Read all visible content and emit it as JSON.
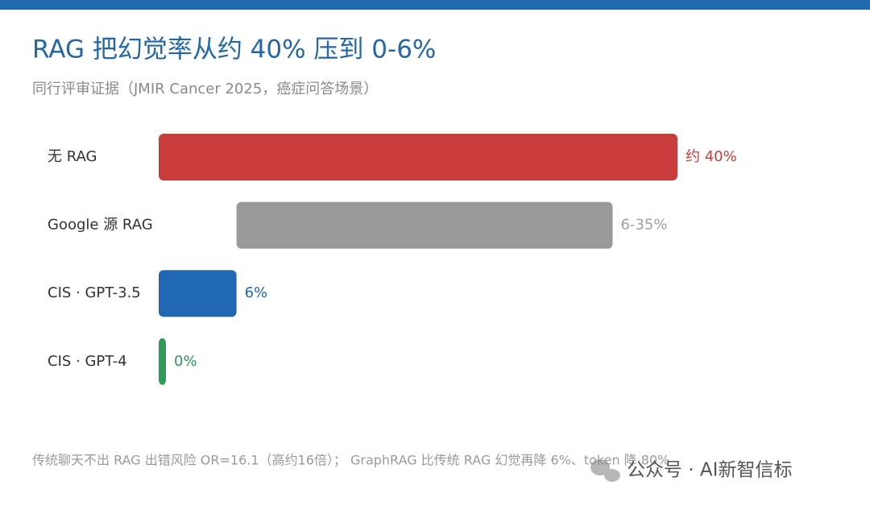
{
  "chart_data": {
    "type": "bar",
    "orientation": "horizontal",
    "title": "RAG 把幻觉率从约 40% 压到 0-6%",
    "subtitle": "同行评审证据（JMIR Cancer 2025，癌症问答场景）",
    "categories": [
      "无 RAG",
      "Google 源 RAG",
      "CIS · GPT-3.5",
      "CIS · GPT-4"
    ],
    "low": [
      0,
      6,
      0,
      0
    ],
    "values": [
      40,
      35,
      6,
      0
    ],
    "value_labels": [
      "约 40%",
      "6-35%",
      "6%",
      "0%"
    ],
    "colors": [
      "#c83c3c",
      "#999999",
      "#2068b4",
      "#2e9a58"
    ],
    "label_colors": [
      "#c83c3c",
      "#a0a0a0",
      "#2068b4",
      "#2e9a58"
    ],
    "footnote": "传统聊天不出 RAG 出错风险 OR=16.1（高约16倍）； GraphRAG 比传统 RAG 幻觉再降 6%、token 降 80%",
    "watermark": "公众号 · AI新智信标"
  }
}
